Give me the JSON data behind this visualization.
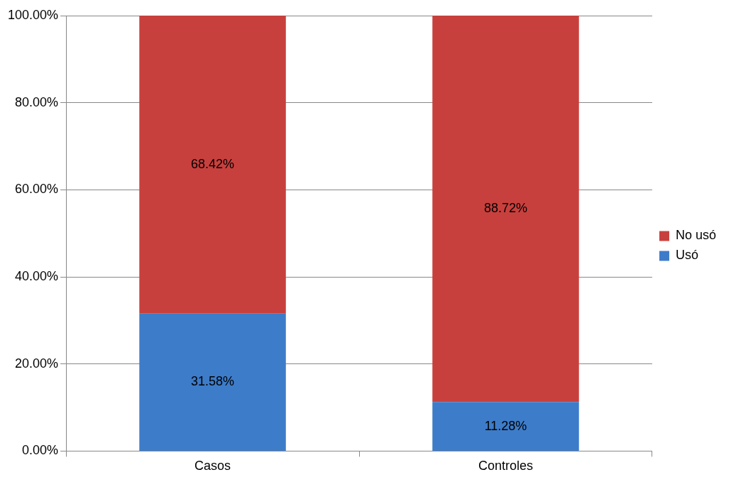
{
  "chart_data": {
    "type": "bar",
    "categories": [
      "Casos",
      "Controles"
    ],
    "series": [
      {
        "name": "Usó",
        "color": "#3d7cc9",
        "values": [
          31.58,
          11.28
        ],
        "value_labels": [
          "31.58%",
          "11.28%"
        ]
      },
      {
        "name": "No usó",
        "color": "#c8403d",
        "values": [
          68.42,
          88.72
        ],
        "value_labels": [
          "68.42%",
          "88.72%"
        ]
      }
    ],
    "stacked": true,
    "ylim": [
      0,
      100
    ],
    "yticks": [
      {
        "value": 0,
        "label": "0.00%"
      },
      {
        "value": 20,
        "label": "20.00%"
      },
      {
        "value": 40,
        "label": "40.00%"
      },
      {
        "value": 60,
        "label": "60.00%"
      },
      {
        "value": 80,
        "label": "80.00%"
      },
      {
        "value": 100,
        "label": "100.00%"
      }
    ],
    "grid": "y",
    "legend": "right"
  }
}
